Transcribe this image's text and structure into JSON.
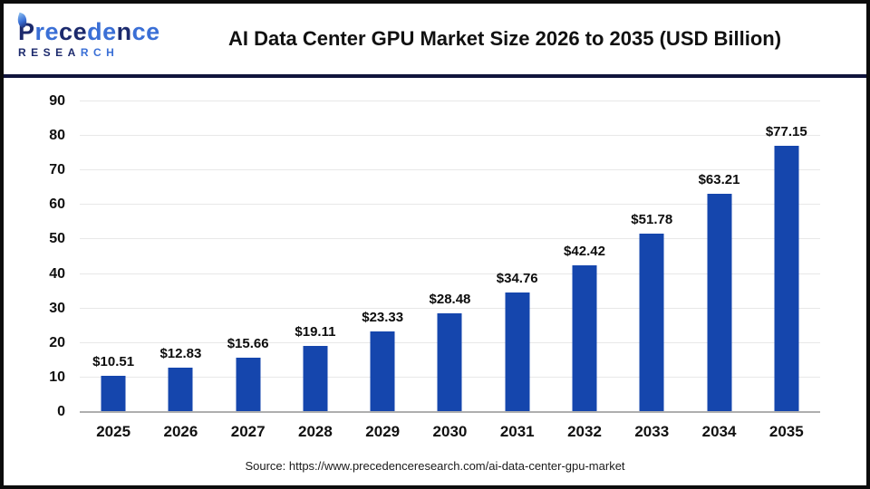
{
  "header": {
    "logo": {
      "name": "Precedence",
      "sub": "RESEARCH",
      "name_parts": [
        {
          "text": "P",
          "color": "#1c2a6d"
        },
        {
          "text": "re",
          "color": "#3a6fd6"
        },
        {
          "text": "ce",
          "color": "#1c2a6d"
        },
        {
          "text": "de",
          "color": "#3a6fd6"
        },
        {
          "text": "n",
          "color": "#1c2a6d"
        },
        {
          "text": "ce",
          "color": "#3a6fd6"
        }
      ],
      "sub_parts": [
        {
          "text": "RESEA",
          "color": "#1c2a6d"
        },
        {
          "text": "RCH",
          "color": "#3a6fd6"
        }
      ]
    },
    "title": "AI Data Center GPU Market Size 2026 to 2035 (USD Billion)"
  },
  "chart_data": {
    "type": "bar",
    "title": "AI Data Center GPU Market Size 2026 to 2035 (USD Billion)",
    "categories": [
      "2025",
      "2026",
      "2027",
      "2028",
      "2029",
      "2030",
      "2031",
      "2032",
      "2033",
      "2034",
      "2035"
    ],
    "values": [
      10.51,
      12.83,
      15.66,
      19.11,
      23.33,
      28.48,
      34.76,
      42.42,
      51.78,
      63.21,
      77.15
    ],
    "labels": [
      "$10.51",
      "$12.83",
      "$15.66",
      "$19.11",
      "$23.33",
      "$28.48",
      "$34.76",
      "$42.42",
      "$51.78",
      "$63.21",
      "$77.15"
    ],
    "xlabel": "",
    "ylabel": "",
    "ylim": [
      0,
      90
    ],
    "yticks": [
      0,
      10,
      20,
      30,
      40,
      50,
      60,
      70,
      80,
      90
    ],
    "grid": true,
    "legend": "none",
    "bar_color": "#1546ad",
    "gridline_color": "#e8e8e8",
    "axis_line_color": "#aeaeae"
  },
  "footer": {
    "source": "Source: https://www.precedenceresearch.com/ai-data-center-gpu-market"
  },
  "colors": {
    "separator": "#10143c",
    "page_border": "#0c0c0c",
    "title_text": "#111111"
  }
}
